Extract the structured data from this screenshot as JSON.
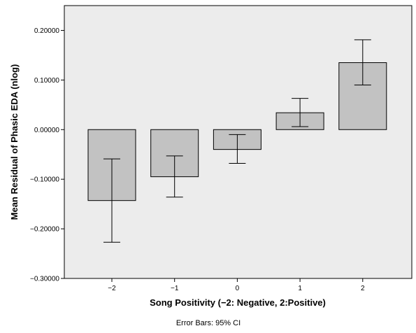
{
  "chart_data": {
    "type": "bar",
    "title": "",
    "xlabel": "Song Positivity (−2: Negative, 2:Positive)",
    "ylabel": "Mean Residual of Phasic EDA (nlog)",
    "footnote": "Error Bars: 95% CI",
    "categories": [
      "−2",
      "−1",
      "0",
      "1",
      "2"
    ],
    "values": [
      -0.143,
      -0.095,
      -0.04,
      0.034,
      0.135
    ],
    "ci_low": [
      -0.227,
      -0.136,
      -0.068,
      0.006,
      0.09
    ],
    "ci_high": [
      -0.059,
      -0.053,
      -0.01,
      0.063,
      0.181
    ],
    "ylim": [
      -0.3,
      0.25
    ],
    "yticks": [
      0.2,
      0.1,
      0.0,
      -0.1,
      -0.2,
      -0.3
    ],
    "ytick_labels": [
      "0.20000",
      "0.10000",
      "0.00000",
      "−0.10000",
      "−0.20000",
      "−0.30000"
    ],
    "grid": false,
    "legend": "none",
    "colors": {
      "plot_background": "#ececec",
      "bar_fill": "#c2c2c2",
      "bar_stroke": "#000000",
      "error_bar": "#000000"
    }
  }
}
